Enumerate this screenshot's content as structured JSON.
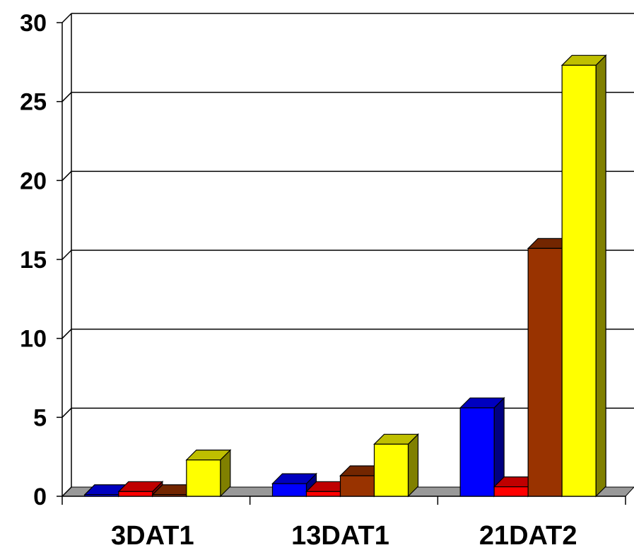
{
  "chart_data": {
    "type": "bar",
    "title": "",
    "xlabel": "",
    "ylabel": "",
    "categories": [
      "3DAT1",
      "13DAT1",
      "21DAT2"
    ],
    "ylim": [
      0,
      30
    ],
    "yticks": [
      "0",
      "5",
      "10",
      "15",
      "20",
      "25",
      "30"
    ],
    "grid": true,
    "legend": "none",
    "style": "3d-clustered-column",
    "series": [
      {
        "values": [
          0.1,
          0.8,
          5.6
        ],
        "color": "#0000FF"
      },
      {
        "values": [
          0.3,
          0.3,
          0.6
        ],
        "color": "#FF0000"
      },
      {
        "values": [
          0.1,
          1.3,
          15.7
        ],
        "color": "#993300"
      },
      {
        "values": [
          2.3,
          3.3,
          27.3
        ],
        "color": "#FFFF00"
      }
    ]
  }
}
